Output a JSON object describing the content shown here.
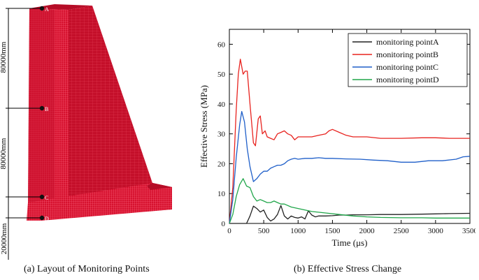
{
  "figure_a": {
    "caption": "(a) Layout of Monitoring Points",
    "dims": [
      "80000mm",
      "80000mm",
      "20000mm"
    ],
    "points": [
      "A",
      "B",
      "C",
      "D"
    ],
    "colors": {
      "dam": "#d6122f",
      "dam_dark": "#b00c25",
      "mesh": "#ff5f78",
      "line": "#000000"
    }
  },
  "caption_b": "(b) Effective Stress Change",
  "chart_data": {
    "type": "line",
    "xlabel": "Time (μs)",
    "ylabel": "Effective Stress (MPa)",
    "xlim": [
      0,
      3500
    ],
    "ylim": [
      0,
      65
    ],
    "xticks": [
      0,
      500,
      1000,
      1500,
      2000,
      2500,
      3000,
      3500
    ],
    "yticks": [
      0,
      10,
      20,
      30,
      40,
      50,
      60
    ],
    "legend_position": "top-right",
    "series": [
      {
        "name": "monitoring pointA",
        "color": "#222222",
        "x": [
          0,
          250,
          300,
          350,
          400,
          450,
          500,
          550,
          600,
          650,
          700,
          750,
          800,
          850,
          900,
          950,
          1000,
          1050,
          1100,
          1150,
          1200,
          1250,
          1300,
          1400,
          1500,
          1600,
          1700,
          1800,
          2000,
          2200,
          2500,
          2800,
          3000,
          3200,
          3500
        ],
        "y": [
          0,
          0,
          2.5,
          5.8,
          5,
          3.8,
          4.5,
          2,
          0.8,
          1.5,
          3,
          6,
          2.5,
          1.5,
          2.5,
          2,
          1.8,
          2.2,
          1.5,
          4.2,
          2.8,
          2.2,
          2.5,
          2.5,
          2.6,
          2.8,
          2.8,
          2.9,
          2.9,
          3.0,
          3.0,
          3.1,
          3.2,
          3.3,
          3.4
        ]
      },
      {
        "name": "monitoring pointB",
        "color": "#e8231f",
        "x": [
          0,
          50,
          100,
          130,
          160,
          200,
          230,
          260,
          300,
          350,
          380,
          420,
          450,
          480,
          520,
          550,
          600,
          650,
          700,
          750,
          800,
          850,
          900,
          950,
          1000,
          1100,
          1200,
          1300,
          1400,
          1450,
          1500,
          1600,
          1700,
          1800,
          2000,
          2200,
          2500,
          2800,
          3000,
          3200,
          3500
        ],
        "y": [
          0,
          12,
          38,
          50,
          55,
          50,
          51,
          51,
          40,
          27,
          26,
          35,
          36,
          30,
          31,
          29,
          28.5,
          28,
          30,
          30.5,
          31,
          30,
          29.5,
          28,
          29,
          29,
          29,
          29.5,
          30,
          31,
          31.5,
          30.5,
          29.5,
          29,
          29,
          28.5,
          28.5,
          28.7,
          28.7,
          28.5,
          28.5
        ]
      },
      {
        "name": "monitoring pointC",
        "color": "#1f5fc9",
        "x": [
          0,
          50,
          100,
          150,
          180,
          220,
          260,
          300,
          350,
          400,
          450,
          500,
          550,
          600,
          650,
          700,
          750,
          800,
          850,
          900,
          950,
          1000,
          1100,
          1200,
          1300,
          1400,
          1500,
          1700,
          1900,
          2100,
          2300,
          2500,
          2700,
          2900,
          3100,
          3300,
          3400,
          3500
        ],
        "y": [
          0,
          8,
          22,
          33,
          37.5,
          34,
          25,
          19,
          14,
          15,
          16.5,
          17.5,
          17.5,
          18.5,
          19,
          19.5,
          19.5,
          20,
          21,
          21.5,
          21.8,
          21.5,
          21.8,
          21.8,
          22,
          21.8,
          21.8,
          21.6,
          21.5,
          21.2,
          21,
          20.5,
          20.5,
          21,
          21,
          21.5,
          22.3,
          22.5
        ]
      },
      {
        "name": "monitoring pointD",
        "color": "#20a64a",
        "x": [
          0,
          50,
          100,
          150,
          200,
          250,
          300,
          350,
          400,
          450,
          500,
          550,
          600,
          650,
          700,
          750,
          800,
          900,
          1000,
          1200,
          1400,
          1600,
          1800,
          2000,
          2200,
          2500,
          2800,
          3000,
          3200,
          3500
        ],
        "y": [
          0,
          3,
          9,
          13,
          15,
          12.5,
          12,
          9,
          7.5,
          8,
          7.5,
          7,
          7,
          7.5,
          7,
          6.5,
          6.5,
          5.5,
          5,
          4,
          3.5,
          3,
          2.5,
          2.2,
          2,
          1.9,
          1.9,
          1.8,
          1.8,
          1.8
        ]
      }
    ]
  }
}
